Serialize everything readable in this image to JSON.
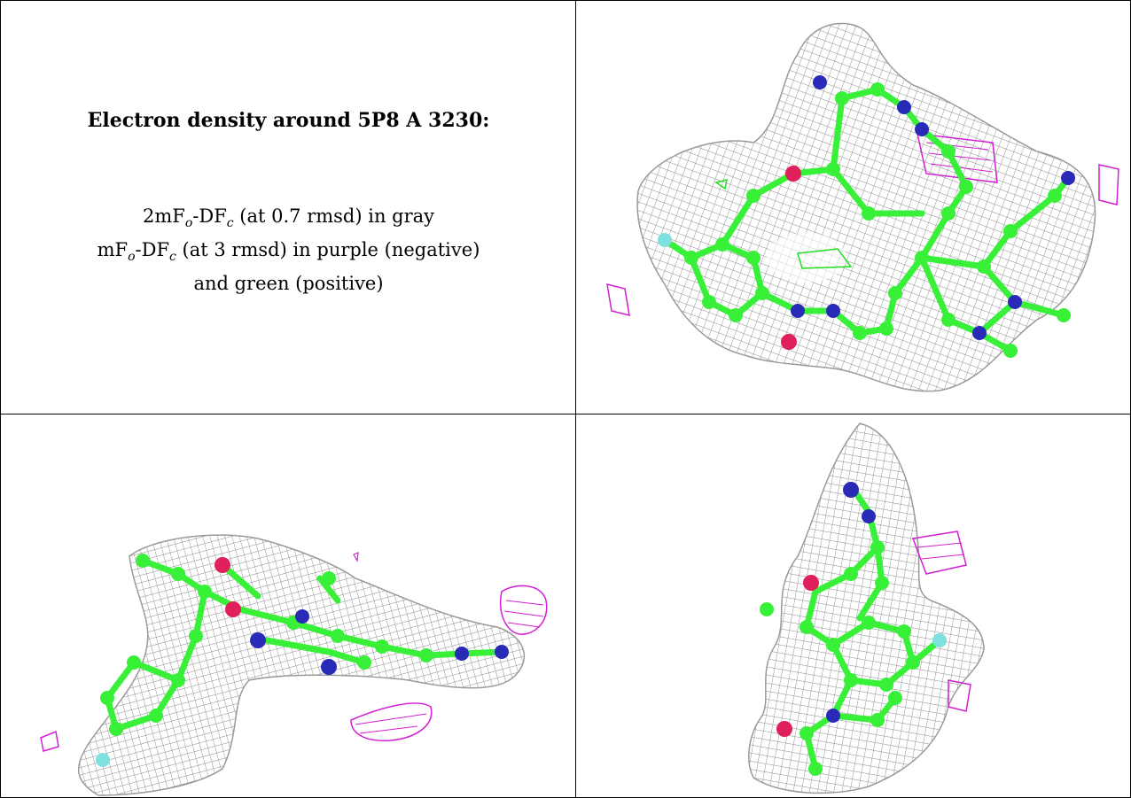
{
  "panel_text": {
    "title": "Electron density around 5P8 A 3230:",
    "line1_prefix": "2mF",
    "line1_sub_o": "o",
    "line1_mid": "-DF",
    "line1_sub_c": "c",
    "line1_suffix": " (at 0.7 rmsd) in gray",
    "line2_prefix": "mF",
    "line2_sub_o": "o",
    "line2_mid": "-DF",
    "line2_sub_c": "c",
    "line2_suffix": " (at 3 rmsd) in purple (negative)",
    "line3": "and green (positive)"
  },
  "colors": {
    "mesh_2fofc": "#8a8a8a",
    "negative_density": "#d21fd2",
    "positive_density": "#22dd22",
    "carbon": "#38f038",
    "nitrogen": "#2a2ab8",
    "oxygen": "#e0205a",
    "fluorine": "#7fe0e0"
  },
  "views": [
    "view-top-right",
    "view-bottom-left",
    "view-bottom-right"
  ]
}
